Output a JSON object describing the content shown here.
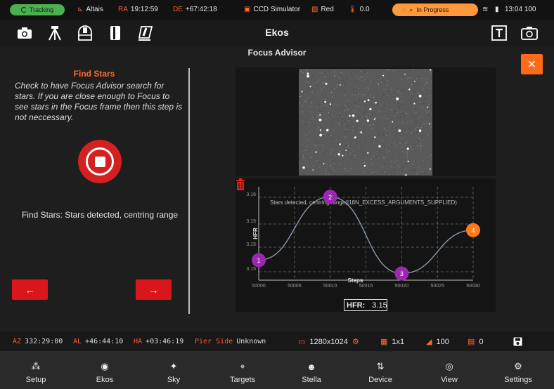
{
  "status": {
    "tracking": "Tracking",
    "altaz_label": "Altais",
    "ra_label": "RA",
    "ra_value": "19:12:59",
    "de_label": "DE",
    "de_value": "+67:42:18",
    "camera": "CCD Simulator",
    "filter": "Red",
    "temperature": "0.0",
    "focus_state": "In Progress",
    "clock": "13:04",
    "battery": "100",
    "colors": {
      "tracking": "#4caf50",
      "focus": "#ff9a3c",
      "accent": "#ff5c33"
    }
  },
  "toolbar": {
    "title": "Ekos",
    "icons": [
      "camera-icon",
      "tripod-icon",
      "dome-icon",
      "dslr-icon",
      "flat-icon",
      "text-overlay-icon",
      "camera-frame-icon"
    ]
  },
  "advisor": {
    "title": "Focus Advisor",
    "step_title": "Find Stars",
    "step_desc": "Check to have Focus Advisor search for stars. If you are close enough to Focus to see stars in the Focus frame then this step is not neccessary.",
    "status": "Find Stars: Stars detected, centring range",
    "hfr_label": "HFR:",
    "hfr_value": "3.15"
  },
  "chart_data": {
    "type": "line",
    "title": "",
    "annotation": "Stars detected, centring range(I18N_EXCESS_ARGUMENTS_SUPPLIED)",
    "xlabel": "Steps",
    "ylabel": "HFR",
    "x_ticks": [
      "50000",
      "50005",
      "50010",
      "50015",
      "50020",
      "50025",
      "50030"
    ],
    "y_ticks": [
      "3.15",
      "3.15",
      "3.15",
      "3.16"
    ],
    "xlim": [
      50000,
      50030
    ],
    "ylim": [
      3.148,
      3.162
    ],
    "points": [
      {
        "label": "1",
        "x": 50000,
        "y": 3.151,
        "color": "#9c27b0"
      },
      {
        "label": "2",
        "x": 50010,
        "y": 3.1605,
        "color": "#9c27b0"
      },
      {
        "label": "3",
        "x": 50020,
        "y": 3.149,
        "color": "#9c27b0"
      },
      {
        "label": "4",
        "x": 50030,
        "y": 3.1555,
        "color": "#ff7a1a"
      }
    ],
    "grid": true
  },
  "info": {
    "az_label": "AZ",
    "az_value": "332:29:00",
    "al_label": "AL",
    "al_value": "+46:44:10",
    "ha_label": "HA",
    "ha_value": "+03:46:19",
    "pier_label": "Pier Side",
    "pier_value": "Unknown",
    "resolution": "1280x1024",
    "binning": "1x1",
    "gain": "100",
    "offset": "0"
  },
  "nav": [
    {
      "label": "Setup",
      "icon": "setup-icon"
    },
    {
      "label": "Ekos",
      "icon": "ekos-icon"
    },
    {
      "label": "Sky",
      "icon": "sky-icon"
    },
    {
      "label": "Targets",
      "icon": "targets-icon"
    },
    {
      "label": "Stella",
      "icon": "stella-icon"
    },
    {
      "label": "Device",
      "icon": "device-icon"
    },
    {
      "label": "View",
      "icon": "view-icon"
    },
    {
      "label": "Settings",
      "icon": "settings-icon"
    }
  ]
}
